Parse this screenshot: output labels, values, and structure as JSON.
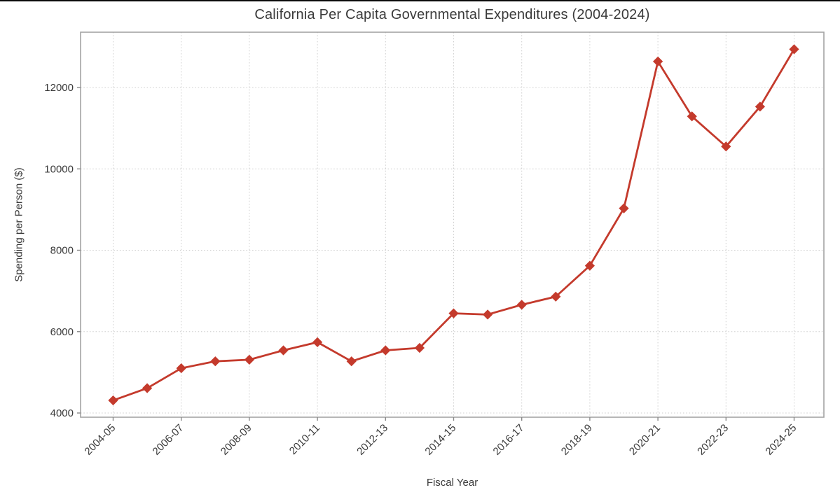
{
  "chart_data": {
    "type": "line",
    "title": "California Per Capita Governmental Expenditures (2004-2024)",
    "xlabel": "Fiscal Year",
    "ylabel": "Spending per Person ($)",
    "categories": [
      "2004-05",
      "2005-06",
      "2006-07",
      "2007-08",
      "2008-09",
      "2009-10",
      "2010-11",
      "2011-12",
      "2012-13",
      "2013-14",
      "2014-15",
      "2015-16",
      "2016-17",
      "2017-18",
      "2018-19",
      "2019-20",
      "2020-21",
      "2021-22",
      "2022-23",
      "2023-24",
      "2024-25"
    ],
    "values": [
      4310,
      4610,
      5100,
      5270,
      5310,
      5540,
      5740,
      5270,
      5540,
      5600,
      6450,
      6420,
      6660,
      6860,
      7620,
      9030,
      12640,
      11290,
      10550,
      11530,
      12940
    ],
    "x_tick_labels": [
      "2004-05",
      "2006-07",
      "2008-09",
      "2010-11",
      "2012-13",
      "2014-15",
      "2016-17",
      "2018-19",
      "2020-21",
      "2022-23",
      "2024-25"
    ],
    "y_ticks": [
      4000,
      6000,
      8000,
      10000,
      12000
    ],
    "ylim": [
      3900,
      13360
    ],
    "grid": "dotted",
    "legend": "none",
    "marker": "diamond",
    "line_color": "#c43a2c",
    "marker_color": "#c43a2c"
  },
  "style": {
    "background": "#ffffff",
    "top_border_color": "#0a0a0a",
    "spine_color": "#a3a3a3",
    "grid_color": "#cccccc",
    "tick_mark_color": "#8a8a8a",
    "text_color": "#3a3a3a"
  }
}
